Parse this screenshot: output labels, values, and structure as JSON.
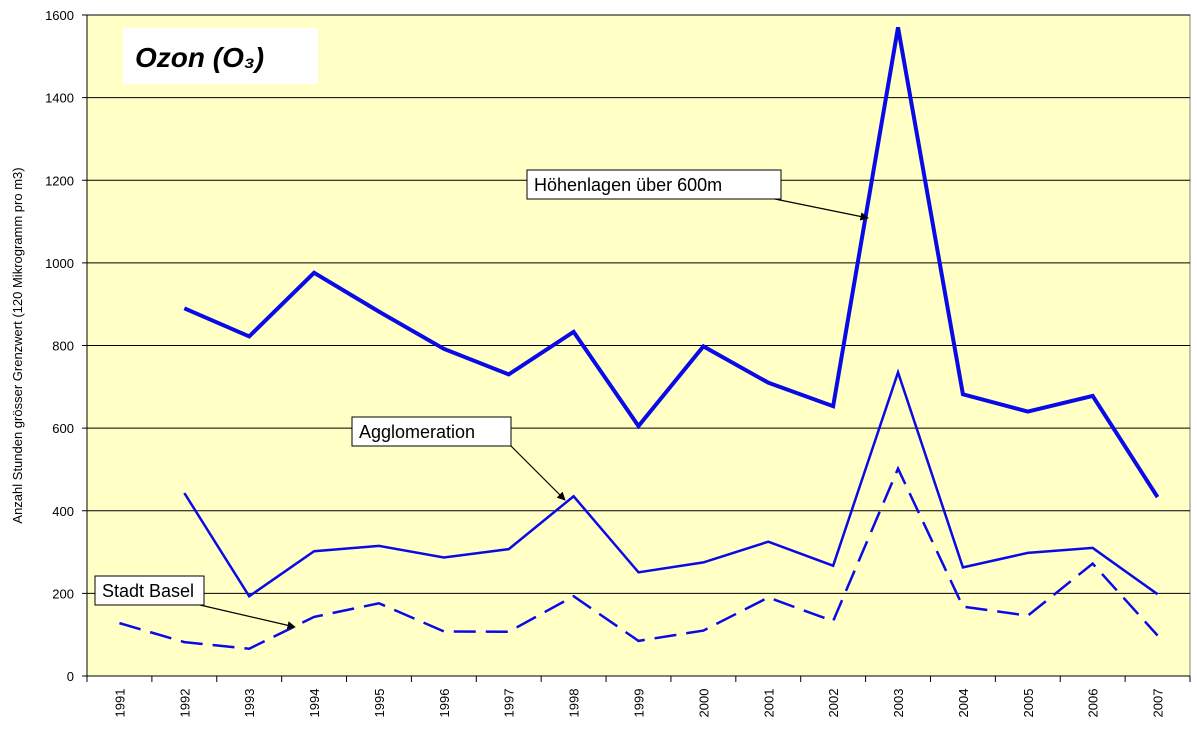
{
  "chart_data": {
    "type": "line",
    "title": "Ozon (O₃)",
    "y_label": "Anzahl Stunden grösser Grenzwert (120 Mikrogramm pro m3)",
    "categories": [
      "1991",
      "1992",
      "1993",
      "1994",
      "1995",
      "1996",
      "1997",
      "1998",
      "1999",
      "2000",
      "2001",
      "2002",
      "2003",
      "2004",
      "2005",
      "2006",
      "2007"
    ],
    "series": [
      {
        "name": "Höhenlagen über 600m",
        "color": "#0a0ae6",
        "width": 4,
        "dashed": false,
        "values": [
          null,
          890,
          822,
          976,
          882,
          792,
          730,
          833,
          605,
          798,
          710,
          653,
          1570,
          682,
          640,
          678,
          433
        ]
      },
      {
        "name": "Agglomeration",
        "color": "#0a0ae6",
        "width": 2.5,
        "dashed": false,
        "values": [
          null,
          443,
          193,
          302,
          315,
          287,
          307,
          435,
          251,
          275,
          325,
          267,
          735,
          263,
          298,
          310,
          198
        ]
      },
      {
        "name": "Stadt Basel",
        "color": "#0a0ae6",
        "width": 2.5,
        "dashed": true,
        "values": [
          128,
          82,
          66,
          143,
          176,
          108,
          107,
          193,
          85,
          110,
          190,
          133,
          502,
          168,
          146,
          272,
          98
        ]
      }
    ],
    "ylim": [
      0,
      1600
    ],
    "yticks": [
      0,
      200,
      400,
      600,
      800,
      1000,
      1200,
      1400,
      1600
    ],
    "grid": true,
    "background": "#ffffc6"
  }
}
